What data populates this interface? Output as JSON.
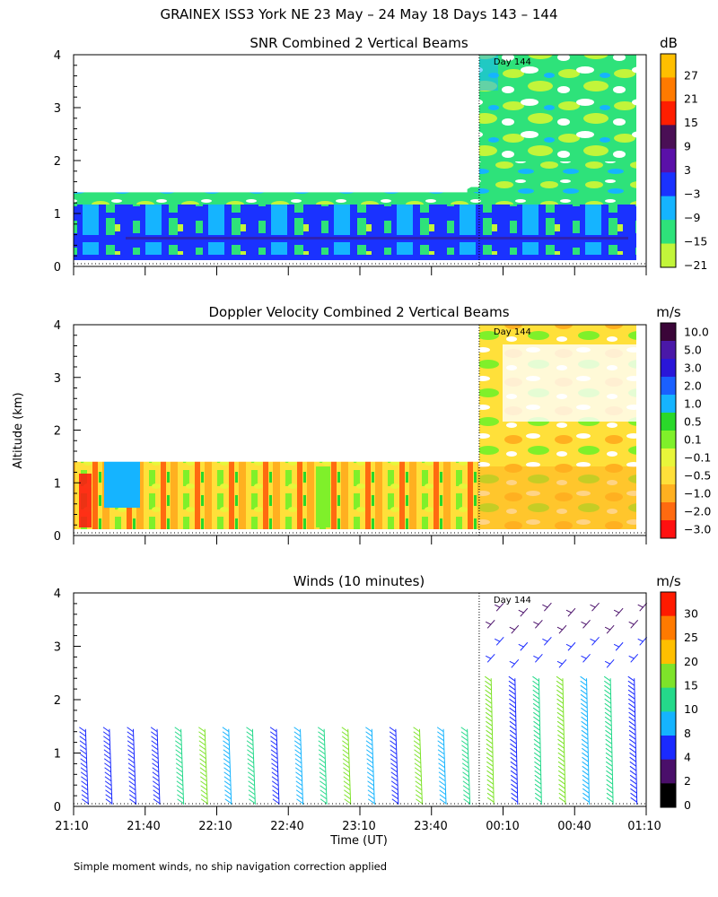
{
  "chart_data": {
    "type": "heatmap",
    "title": "GRAINEX ISS3 York NE  23 May – 24 May 18 Days 143 – 144",
    "xlabel": "Time (UT)",
    "ylabel": "Altitude (km)",
    "footnote": "Simple moment winds, no ship navigation correction applied",
    "x_tick_labels": [
      "21:10",
      "21:40",
      "22:10",
      "22:40",
      "23:10",
      "23:40",
      "00:10",
      "00:40",
      "01:10"
    ],
    "x_range_minutes": [
      0,
      240
    ],
    "y_range_km": [
      0,
      4
    ],
    "y_tick_labels": [
      "0",
      "1",
      "2",
      "3",
      "4"
    ],
    "day_marker": {
      "label": "Day 144",
      "time_minutes": 170
    },
    "panels": [
      {
        "title": "SNR Combined 2 Vertical Beams",
        "unit": "dB",
        "kind": "contour",
        "colorbar_labels": [
          "27",
          "21",
          "15",
          "9",
          "3",
          "−3",
          "−9",
          "−15",
          "−21"
        ],
        "colorbar_colors": [
          "#ffbf00",
          "#ff7a00",
          "#ff1e00",
          "#4a0f55",
          "#5a10a8",
          "#1a32ff",
          "#15b4ff",
          "#2ee27a",
          "#c2f53a"
        ],
        "data_segments": [
          {
            "t_start": 0,
            "t_end": 165,
            "top_km": 1.4
          },
          {
            "t_start": 165,
            "t_end": 170,
            "top_km": 1.5
          },
          {
            "t_start": 170,
            "t_end": 240,
            "top_km": 4.0
          }
        ]
      },
      {
        "title": "Doppler Velocity Combined 2 Vertical Beams",
        "unit": "m/s",
        "kind": "contour",
        "colorbar_labels": [
          "10.0",
          "5.0",
          "3.0",
          "2.0",
          "1.0",
          "0.5",
          "0.1",
          "−0.1",
          "−0.5",
          "−1.0",
          "−2.0",
          "−3.0"
        ],
        "colorbar_colors": [
          "#3a0538",
          "#4a18a8",
          "#2a16d8",
          "#1a60ff",
          "#15b4ff",
          "#2ad82a",
          "#7ff02a",
          "#e8f63a",
          "#ffe03a",
          "#ffb020",
          "#ff6a10",
          "#ff1010"
        ],
        "data_segments": [
          {
            "t_start": 0,
            "t_end": 170,
            "top_km": 1.4
          },
          {
            "t_start": 170,
            "t_end": 240,
            "top_km": 4.0
          }
        ]
      },
      {
        "title": "Winds (10 minutes)",
        "unit": "m/s",
        "kind": "barbs",
        "colorbar_labels": [
          "30",
          "25",
          "20",
          "15",
          "10",
          "8",
          "4",
          "2",
          "0"
        ],
        "colorbar_colors": [
          "#ff1a00",
          "#ff7a00",
          "#ffbf00",
          "#7ee32a",
          "#24d98a",
          "#15b4ff",
          "#1a2aff",
          "#4a0f6a",
          "#000000"
        ],
        "profile_times_minutes": [
          5,
          15,
          25,
          35,
          45,
          55,
          65,
          75,
          85,
          95,
          105,
          115,
          125,
          135,
          145,
          155,
          165,
          175,
          185,
          195,
          205,
          215,
          225,
          235
        ]
      }
    ]
  }
}
